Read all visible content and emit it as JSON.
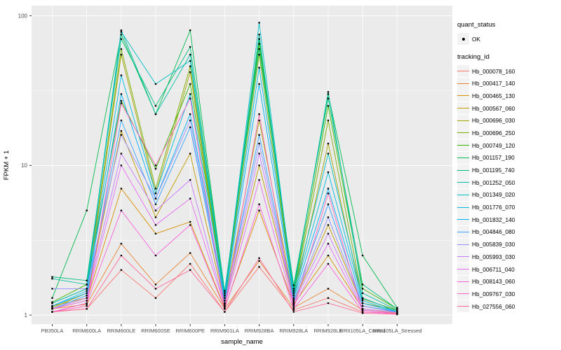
{
  "legend": {
    "quant_title": "quant_status",
    "quant_items": [
      {
        "label": "OK",
        "shape": "point"
      }
    ],
    "tracking_title": "tracking_id"
  },
  "chart_data": {
    "type": "line",
    "title": "",
    "x_label": "sample_name",
    "y_label": "FPKM + 1",
    "y_scale": "log10",
    "y_ticks": [
      1,
      10,
      100
    ],
    "ylim": [
      0.87,
      117
    ],
    "grid": "on",
    "legend_position": "right",
    "panel_background": "#EBEBEB",
    "gridline_color": "#FFFFFF",
    "point_color": "#000000",
    "categories": [
      "PB350LA",
      "RRIM600LA",
      "RRIM600LE",
      "RRIM600SE",
      "RRIM600PE",
      "RRIM901LA",
      "RRIM928BA",
      "RRIM928LA",
      "RRIM928LE",
      "RRII105LA_Control",
      "RRII105LA_Stressed"
    ],
    "series": [
      {
        "name": "Hb_000078_160",
        "color": "#F8766D",
        "values": [
          1.05,
          1.1,
          2.0,
          1.3,
          2.2,
          1.05,
          2.1,
          1.08,
          1.3,
          1.05,
          1.02
        ]
      },
      {
        "name": "Hb_000417_140",
        "color": "#EA8331",
        "values": [
          1.1,
          1.18,
          3.0,
          1.6,
          2.6,
          1.1,
          2.3,
          1.12,
          1.5,
          1.08,
          1.03
        ]
      },
      {
        "name": "Hb_000465_130",
        "color": "#D89000",
        "values": [
          1.1,
          1.25,
          7.0,
          3.5,
          4.2,
          1.12,
          5.0,
          1.18,
          2.5,
          1.1,
          1.04
        ]
      },
      {
        "name": "Hb_000567_060",
        "color": "#C09B00",
        "values": [
          1.15,
          1.3,
          17.0,
          4.5,
          12.0,
          1.18,
          10.0,
          1.22,
          4.0,
          1.15,
          1.05
        ]
      },
      {
        "name": "Hb_000696_030",
        "color": "#A3A500",
        "values": [
          1.12,
          1.4,
          55.0,
          6.5,
          42.0,
          1.25,
          20.0,
          1.28,
          14.0,
          1.2,
          1.08
        ]
      },
      {
        "name": "Hb_000696_250",
        "color": "#7CAE00",
        "values": [
          1.2,
          1.5,
          60.0,
          7.0,
          46.0,
          1.3,
          55.0,
          1.35,
          20.0,
          1.28,
          1.08
        ]
      },
      {
        "name": "Hb_000749_120",
        "color": "#39B600",
        "values": [
          1.22,
          1.6,
          27.0,
          9.5,
          35.0,
          1.35,
          65.0,
          1.4,
          25.0,
          1.5,
          1.1
        ]
      },
      {
        "name": "Hb_001157_190",
        "color": "#00BB4E",
        "values": [
          1.3,
          5.0,
          75.0,
          22.0,
          80.0,
          1.4,
          70.0,
          1.5,
          30.0,
          2.5,
          1.12
        ]
      },
      {
        "name": "Hb_001195_740",
        "color": "#00BF7D",
        "values": [
          1.8,
          1.7,
          70.0,
          25.0,
          62.0,
          1.45,
          60.0,
          1.58,
          28.0,
          1.6,
          1.1
        ]
      },
      {
        "name": "Hb_001252_050",
        "color": "#00C1A3",
        "values": [
          1.75,
          1.6,
          80.0,
          22.0,
          55.0,
          1.4,
          75.0,
          1.45,
          31.0,
          1.4,
          1.08
        ]
      },
      {
        "name": "Hb_001349_020",
        "color": "#00BFC4",
        "values": [
          1.2,
          1.5,
          78.0,
          35.0,
          50.0,
          1.35,
          90.0,
          1.4,
          12.0,
          1.3,
          1.06
        ]
      },
      {
        "name": "Hb_001776_070",
        "color": "#00BAE0",
        "values": [
          1.15,
          1.45,
          40.0,
          6.5,
          30.0,
          1.3,
          45.0,
          1.35,
          9.0,
          1.25,
          1.05
        ]
      },
      {
        "name": "Hb_001832_140",
        "color": "#00B0F6",
        "values": [
          1.15,
          1.4,
          30.0,
          6.0,
          22.0,
          1.25,
          35.0,
          1.3,
          7.0,
          1.2,
          1.05
        ]
      },
      {
        "name": "Hb_004846_080",
        "color": "#35A2FF",
        "values": [
          1.1,
          1.35,
          20.0,
          5.5,
          18.0,
          1.2,
          16.0,
          1.25,
          5.5,
          1.15,
          1.05
        ]
      },
      {
        "name": "Hb_005839_030",
        "color": "#9590FF",
        "values": [
          1.5,
          1.5,
          16.0,
          6.0,
          20.0,
          1.2,
          14.0,
          1.22,
          4.5,
          1.15,
          1.04
        ]
      },
      {
        "name": "Hb_005993_030",
        "color": "#C77CFF",
        "values": [
          1.1,
          1.3,
          12.0,
          5.0,
          8.0,
          1.15,
          12.0,
          1.2,
          3.5,
          1.1,
          1.04
        ]
      },
      {
        "name": "Hb_006711_040",
        "color": "#E76BF3",
        "values": [
          1.1,
          1.25,
          10.0,
          4.0,
          6.0,
          1.15,
          8.0,
          1.15,
          3.0,
          1.08,
          1.02
        ]
      },
      {
        "name": "Hb_008143_060",
        "color": "#FA62DB",
        "values": [
          1.05,
          1.2,
          5.0,
          2.5,
          4.0,
          1.1,
          5.5,
          1.1,
          2.2,
          1.05,
          1.02
        ]
      },
      {
        "name": "Hb_009767_030",
        "color": "#FF62BC",
        "values": [
          1.05,
          1.15,
          26.0,
          10.0,
          28.0,
          1.1,
          22.0,
          1.1,
          6.5,
          1.05,
          1.02
        ]
      },
      {
        "name": "Hb_027556_060",
        "color": "#FF6A98",
        "values": [
          1.05,
          1.1,
          2.5,
          1.5,
          2.0,
          1.05,
          2.4,
          1.05,
          1.2,
          1.03,
          1.01
        ]
      }
    ]
  }
}
